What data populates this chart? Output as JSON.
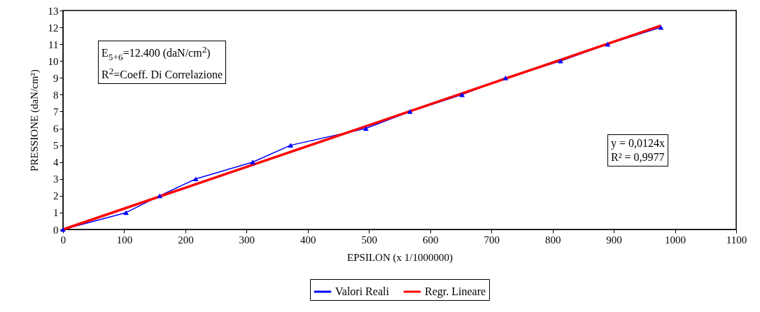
{
  "chart_data": {
    "type": "line",
    "xlabel": "EPSILON (x 1/1000000)",
    "ylabel": "PRESSIONE (daN/cm²)",
    "xlim": [
      0,
      1100
    ],
    "xticks": [
      0,
      100,
      200,
      300,
      400,
      500,
      600,
      700,
      800,
      900,
      1000,
      1100
    ],
    "ylim": [
      0,
      13
    ],
    "yticks": [
      0,
      1,
      2,
      3,
      4,
      5,
      6,
      7,
      8,
      9,
      10,
      11,
      12,
      13
    ],
    "grid": false,
    "legend": "bottom",
    "line_style": "solid",
    "series": [
      {
        "name": "Valori Reali",
        "color": "#0000ff",
        "marker": "triangle",
        "x": [
          0,
          103,
          158,
          217,
          310,
          372,
          495,
          567,
          652,
          723,
          813,
          890,
          977
        ],
        "values": [
          0,
          1,
          2,
          3,
          4,
          5,
          6,
          7,
          8,
          9,
          10,
          11,
          12
        ]
      },
      {
        "name": "Regr. Lineare",
        "color": "#ff0000",
        "marker": "none",
        "x": [
          0,
          977
        ],
        "values": [
          0,
          12.1
        ]
      }
    ],
    "annotations": [
      "E$_{5+6}$=12.400 (daN/cm$^{2}$)\nR$^{2}$=Coeff. Di Correlazione",
      "y = 0,0124x\nR² = 0,9977"
    ]
  }
}
